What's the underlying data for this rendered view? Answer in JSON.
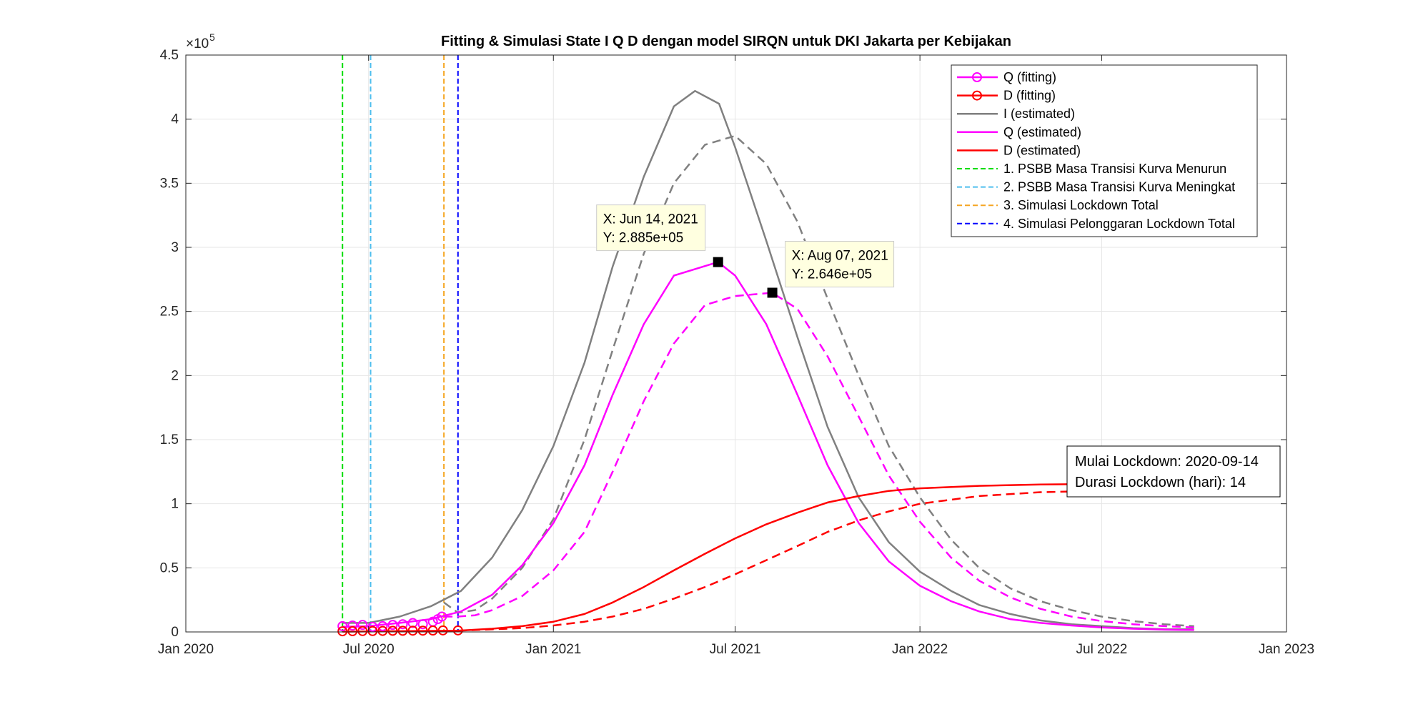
{
  "chart_data": {
    "type": "line",
    "title": "Fitting & Simulasi State  I Q D dengan model SIRQN untuk DKI Jakarta per Kebijakan",
    "xlabel": "",
    "ylabel": "",
    "exponent_label": "×10",
    "exponent_power": "5",
    "x_domain": [
      "2020-01-01",
      "2023-01-01"
    ],
    "ylim": [
      0,
      4.5
    ],
    "x_ticks": [
      {
        "date": "2020-01-01",
        "label": "Jan 2020"
      },
      {
        "date": "2020-07-01",
        "label": "Jul 2020"
      },
      {
        "date": "2021-01-01",
        "label": "Jan 2021"
      },
      {
        "date": "2021-07-01",
        "label": "Jul 2021"
      },
      {
        "date": "2022-01-01",
        "label": "Jan 2022"
      },
      {
        "date": "2022-07-01",
        "label": "Jul 2022"
      },
      {
        "date": "2023-01-01",
        "label": "Jan 2023"
      }
    ],
    "y_ticks": [
      {
        "value": 0,
        "label": "0"
      },
      {
        "value": 0.5,
        "label": "0.5"
      },
      {
        "value": 1,
        "label": "1"
      },
      {
        "value": 1.5,
        "label": "1.5"
      },
      {
        "value": 2,
        "label": "2"
      },
      {
        "value": 2.5,
        "label": "2.5"
      },
      {
        "value": 3,
        "label": "3"
      },
      {
        "value": 3.5,
        "label": "3.5"
      },
      {
        "value": 4,
        "label": "4"
      },
      {
        "value": 4.5,
        "label": "4.5"
      }
    ],
    "grid": true,
    "legend_position": "top-right",
    "legend": [
      {
        "label": "Q (fitting)",
        "color": "#ff00ff",
        "style": "solid-marker"
      },
      {
        "label": "D (fitting)",
        "color": "#ff0000",
        "style": "solid-marker"
      },
      {
        "label": "I (estimated)",
        "color": "#808080",
        "style": "solid"
      },
      {
        "label": "Q (estimated)",
        "color": "#ff00ff",
        "style": "solid"
      },
      {
        "label": "D (estimated)",
        "color": "#ff0000",
        "style": "solid"
      },
      {
        "label": "1. PSBB Masa Transisi Kurva Menurun",
        "color": "#00dd00",
        "style": "dashed"
      },
      {
        "label": "2. PSBB Masa Transisi Kurva Meningkat",
        "color": "#4dbeee",
        "style": "dashed"
      },
      {
        "label": "3. Simulasi Lockdown Total",
        "color": "#f5a623",
        "style": "dashed"
      },
      {
        "label": "4. Simulasi Pelonggaran Lockdown Total",
        "color": "#0000ff",
        "style": "dashed"
      }
    ],
    "vlines": [
      {
        "date": "2020-06-05",
        "color": "#00dd00"
      },
      {
        "date": "2020-07-03",
        "color": "#4dbeee"
      },
      {
        "date": "2020-09-14",
        "color": "#f5a623"
      },
      {
        "date": "2020-09-28",
        "color": "#0000ff"
      }
    ],
    "series": [
      {
        "name": "I (estimated)",
        "color": "#808080",
        "dash": "solid",
        "points": [
          [
            "2020-06-05",
            0.07
          ],
          [
            "2020-07-01",
            0.07
          ],
          [
            "2020-08-01",
            0.12
          ],
          [
            "2020-09-01",
            0.2
          ],
          [
            "2020-10-01",
            0.32
          ],
          [
            "2020-11-01",
            0.58
          ],
          [
            "2020-12-01",
            0.95
          ],
          [
            "2021-01-01",
            1.45
          ],
          [
            "2021-02-01",
            2.1
          ],
          [
            "2021-03-01",
            2.85
          ],
          [
            "2021-04-01",
            3.55
          ],
          [
            "2021-05-01",
            4.1
          ],
          [
            "2021-05-22",
            4.22
          ],
          [
            "2021-06-15",
            4.12
          ],
          [
            "2021-07-01",
            3.78
          ],
          [
            "2021-08-01",
            3.05
          ],
          [
            "2021-09-01",
            2.3
          ],
          [
            "2021-10-01",
            1.6
          ],
          [
            "2021-11-01",
            1.05
          ],
          [
            "2021-12-01",
            0.7
          ],
          [
            "2022-01-01",
            0.47
          ],
          [
            "2022-02-01",
            0.32
          ],
          [
            "2022-03-01",
            0.21
          ],
          [
            "2022-04-01",
            0.14
          ],
          [
            "2022-05-01",
            0.09
          ],
          [
            "2022-06-01",
            0.06
          ],
          [
            "2022-07-01",
            0.045
          ],
          [
            "2022-08-01",
            0.03
          ],
          [
            "2022-09-01",
            0.022
          ],
          [
            "2022-10-01",
            0.02
          ]
        ]
      },
      {
        "name": "I (simulasi)",
        "color": "#808080",
        "dash": "dashed",
        "points": [
          [
            "2020-09-14",
            0.23
          ],
          [
            "2020-09-28",
            0.15
          ],
          [
            "2020-10-15",
            0.17
          ],
          [
            "2020-11-01",
            0.26
          ],
          [
            "2020-12-01",
            0.5
          ],
          [
            "2021-01-01",
            0.88
          ],
          [
            "2021-02-01",
            1.5
          ],
          [
            "2021-03-01",
            2.2
          ],
          [
            "2021-04-01",
            2.95
          ],
          [
            "2021-05-01",
            3.5
          ],
          [
            "2021-06-01",
            3.8
          ],
          [
            "2021-07-01",
            3.87
          ],
          [
            "2021-08-01",
            3.65
          ],
          [
            "2021-09-01",
            3.2
          ],
          [
            "2021-10-01",
            2.6
          ],
          [
            "2021-11-01",
            2.0
          ],
          [
            "2021-12-01",
            1.45
          ],
          [
            "2022-01-01",
            1.05
          ],
          [
            "2022-02-01",
            0.72
          ],
          [
            "2022-03-01",
            0.5
          ],
          [
            "2022-04-01",
            0.34
          ],
          [
            "2022-05-01",
            0.24
          ],
          [
            "2022-06-01",
            0.17
          ],
          [
            "2022-07-01",
            0.12
          ],
          [
            "2022-08-01",
            0.085
          ],
          [
            "2022-09-01",
            0.06
          ],
          [
            "2022-10-01",
            0.045
          ]
        ]
      },
      {
        "name": "Q (estimated)",
        "color": "#ff00ff",
        "dash": "solid",
        "points": [
          [
            "2020-06-05",
            0.04
          ],
          [
            "2020-07-01",
            0.045
          ],
          [
            "2020-08-01",
            0.07
          ],
          [
            "2020-09-01",
            0.1
          ],
          [
            "2020-10-01",
            0.16
          ],
          [
            "2020-11-01",
            0.29
          ],
          [
            "2020-12-01",
            0.52
          ],
          [
            "2021-01-01",
            0.85
          ],
          [
            "2021-02-01",
            1.3
          ],
          [
            "2021-03-01",
            1.85
          ],
          [
            "2021-04-01",
            2.4
          ],
          [
            "2021-05-01",
            2.78
          ],
          [
            "2021-06-14",
            2.885
          ],
          [
            "2021-07-01",
            2.78
          ],
          [
            "2021-08-01",
            2.4
          ],
          [
            "2021-09-01",
            1.85
          ],
          [
            "2021-10-01",
            1.3
          ],
          [
            "2021-11-01",
            0.85
          ],
          [
            "2021-12-01",
            0.55
          ],
          [
            "2022-01-01",
            0.36
          ],
          [
            "2022-02-01",
            0.24
          ],
          [
            "2022-03-01",
            0.16
          ],
          [
            "2022-04-01",
            0.1
          ],
          [
            "2022-05-01",
            0.07
          ],
          [
            "2022-06-01",
            0.05
          ],
          [
            "2022-07-01",
            0.035
          ],
          [
            "2022-08-01",
            0.025
          ],
          [
            "2022-09-01",
            0.018
          ],
          [
            "2022-10-01",
            0.015
          ]
        ]
      },
      {
        "name": "Q (simulasi)",
        "color": "#ff00ff",
        "dash": "dashed",
        "points": [
          [
            "2020-09-14",
            0.12
          ],
          [
            "2020-09-28",
            0.12
          ],
          [
            "2020-10-15",
            0.13
          ],
          [
            "2020-11-01",
            0.17
          ],
          [
            "2020-12-01",
            0.28
          ],
          [
            "2021-01-01",
            0.48
          ],
          [
            "2021-02-01",
            0.78
          ],
          [
            "2021-03-01",
            1.25
          ],
          [
            "2021-04-01",
            1.8
          ],
          [
            "2021-05-01",
            2.25
          ],
          [
            "2021-06-01",
            2.55
          ],
          [
            "2021-07-01",
            2.62
          ],
          [
            "2021-08-07",
            2.646
          ],
          [
            "2021-09-01",
            2.52
          ],
          [
            "2021-10-01",
            2.15
          ],
          [
            "2021-11-01",
            1.68
          ],
          [
            "2021-12-01",
            1.22
          ],
          [
            "2022-01-01",
            0.86
          ],
          [
            "2022-02-01",
            0.58
          ],
          [
            "2022-03-01",
            0.4
          ],
          [
            "2022-04-01",
            0.27
          ],
          [
            "2022-05-01",
            0.18
          ],
          [
            "2022-06-01",
            0.12
          ],
          [
            "2022-07-01",
            0.085
          ],
          [
            "2022-08-01",
            0.06
          ],
          [
            "2022-09-01",
            0.045
          ],
          [
            "2022-10-01",
            0.035
          ]
        ]
      },
      {
        "name": "D (estimated)",
        "color": "#ff0000",
        "dash": "solid",
        "points": [
          [
            "2020-06-05",
            0.002
          ],
          [
            "2020-09-28",
            0.01
          ],
          [
            "2020-11-01",
            0.025
          ],
          [
            "2020-12-01",
            0.045
          ],
          [
            "2021-01-01",
            0.08
          ],
          [
            "2021-02-01",
            0.14
          ],
          [
            "2021-03-01",
            0.23
          ],
          [
            "2021-04-01",
            0.35
          ],
          [
            "2021-05-01",
            0.48
          ],
          [
            "2021-06-01",
            0.61
          ],
          [
            "2021-07-01",
            0.73
          ],
          [
            "2021-08-01",
            0.84
          ],
          [
            "2021-09-01",
            0.93
          ],
          [
            "2021-10-01",
            1.01
          ],
          [
            "2021-11-01",
            1.06
          ],
          [
            "2021-12-01",
            1.1
          ],
          [
            "2022-01-01",
            1.12
          ],
          [
            "2022-03-01",
            1.14
          ],
          [
            "2022-05-01",
            1.15
          ],
          [
            "2022-07-01",
            1.155
          ],
          [
            "2022-10-01",
            1.16
          ]
        ]
      },
      {
        "name": "D (simulasi)",
        "color": "#ff0000",
        "dash": "dashed",
        "points": [
          [
            "2020-09-28",
            0.01
          ],
          [
            "2020-11-01",
            0.02
          ],
          [
            "2020-12-01",
            0.03
          ],
          [
            "2021-01-01",
            0.05
          ],
          [
            "2021-02-01",
            0.08
          ],
          [
            "2021-03-01",
            0.12
          ],
          [
            "2021-04-01",
            0.18
          ],
          [
            "2021-05-01",
            0.26
          ],
          [
            "2021-06-01",
            0.35
          ],
          [
            "2021-07-01",
            0.45
          ],
          [
            "2021-08-01",
            0.56
          ],
          [
            "2021-09-01",
            0.67
          ],
          [
            "2021-10-01",
            0.78
          ],
          [
            "2021-11-01",
            0.87
          ],
          [
            "2021-12-01",
            0.94
          ],
          [
            "2022-01-01",
            1.0
          ],
          [
            "2022-03-01",
            1.06
          ],
          [
            "2022-05-01",
            1.09
          ],
          [
            "2022-07-01",
            1.1
          ],
          [
            "2022-10-01",
            1.11
          ]
        ]
      }
    ],
    "fitting_points": {
      "q": [
        [
          "2020-06-05",
          0.045
        ],
        [
          "2020-06-15",
          0.05
        ],
        [
          "2020-06-25",
          0.055
        ],
        [
          "2020-07-05",
          0.04
        ],
        [
          "2020-07-15",
          0.045
        ],
        [
          "2020-07-25",
          0.055
        ],
        [
          "2020-08-04",
          0.06
        ],
        [
          "2020-08-14",
          0.07
        ],
        [
          "2020-08-24",
          0.06
        ],
        [
          "2020-09-03",
          0.08
        ],
        [
          "2020-09-08",
          0.1
        ],
        [
          "2020-09-12",
          0.12
        ]
      ],
      "d": [
        [
          "2020-06-05",
          0.005
        ],
        [
          "2020-06-15",
          0.006
        ],
        [
          "2020-06-25",
          0.007
        ],
        [
          "2020-07-05",
          0.007
        ],
        [
          "2020-07-15",
          0.008
        ],
        [
          "2020-07-25",
          0.009
        ],
        [
          "2020-08-04",
          0.009
        ],
        [
          "2020-08-14",
          0.01
        ],
        [
          "2020-08-24",
          0.01
        ],
        [
          "2020-09-03",
          0.011
        ],
        [
          "2020-09-13",
          0.012
        ],
        [
          "2020-09-28",
          0.012
        ]
      ]
    },
    "datatips": [
      {
        "date": "2021-06-14",
        "y": 2.885,
        "line1": "X: Jun 14, 2021",
        "line2": "Y: 2.885e+05"
      },
      {
        "date": "2021-08-07",
        "y": 2.646,
        "line1": "X: Aug 07, 2021",
        "line2": "Y: 2.646e+05"
      }
    ],
    "annotation": {
      "line1": "Mulai Lockdown: 2020-09-14",
      "line2": "Durasi Lockdown (hari): 14"
    }
  }
}
